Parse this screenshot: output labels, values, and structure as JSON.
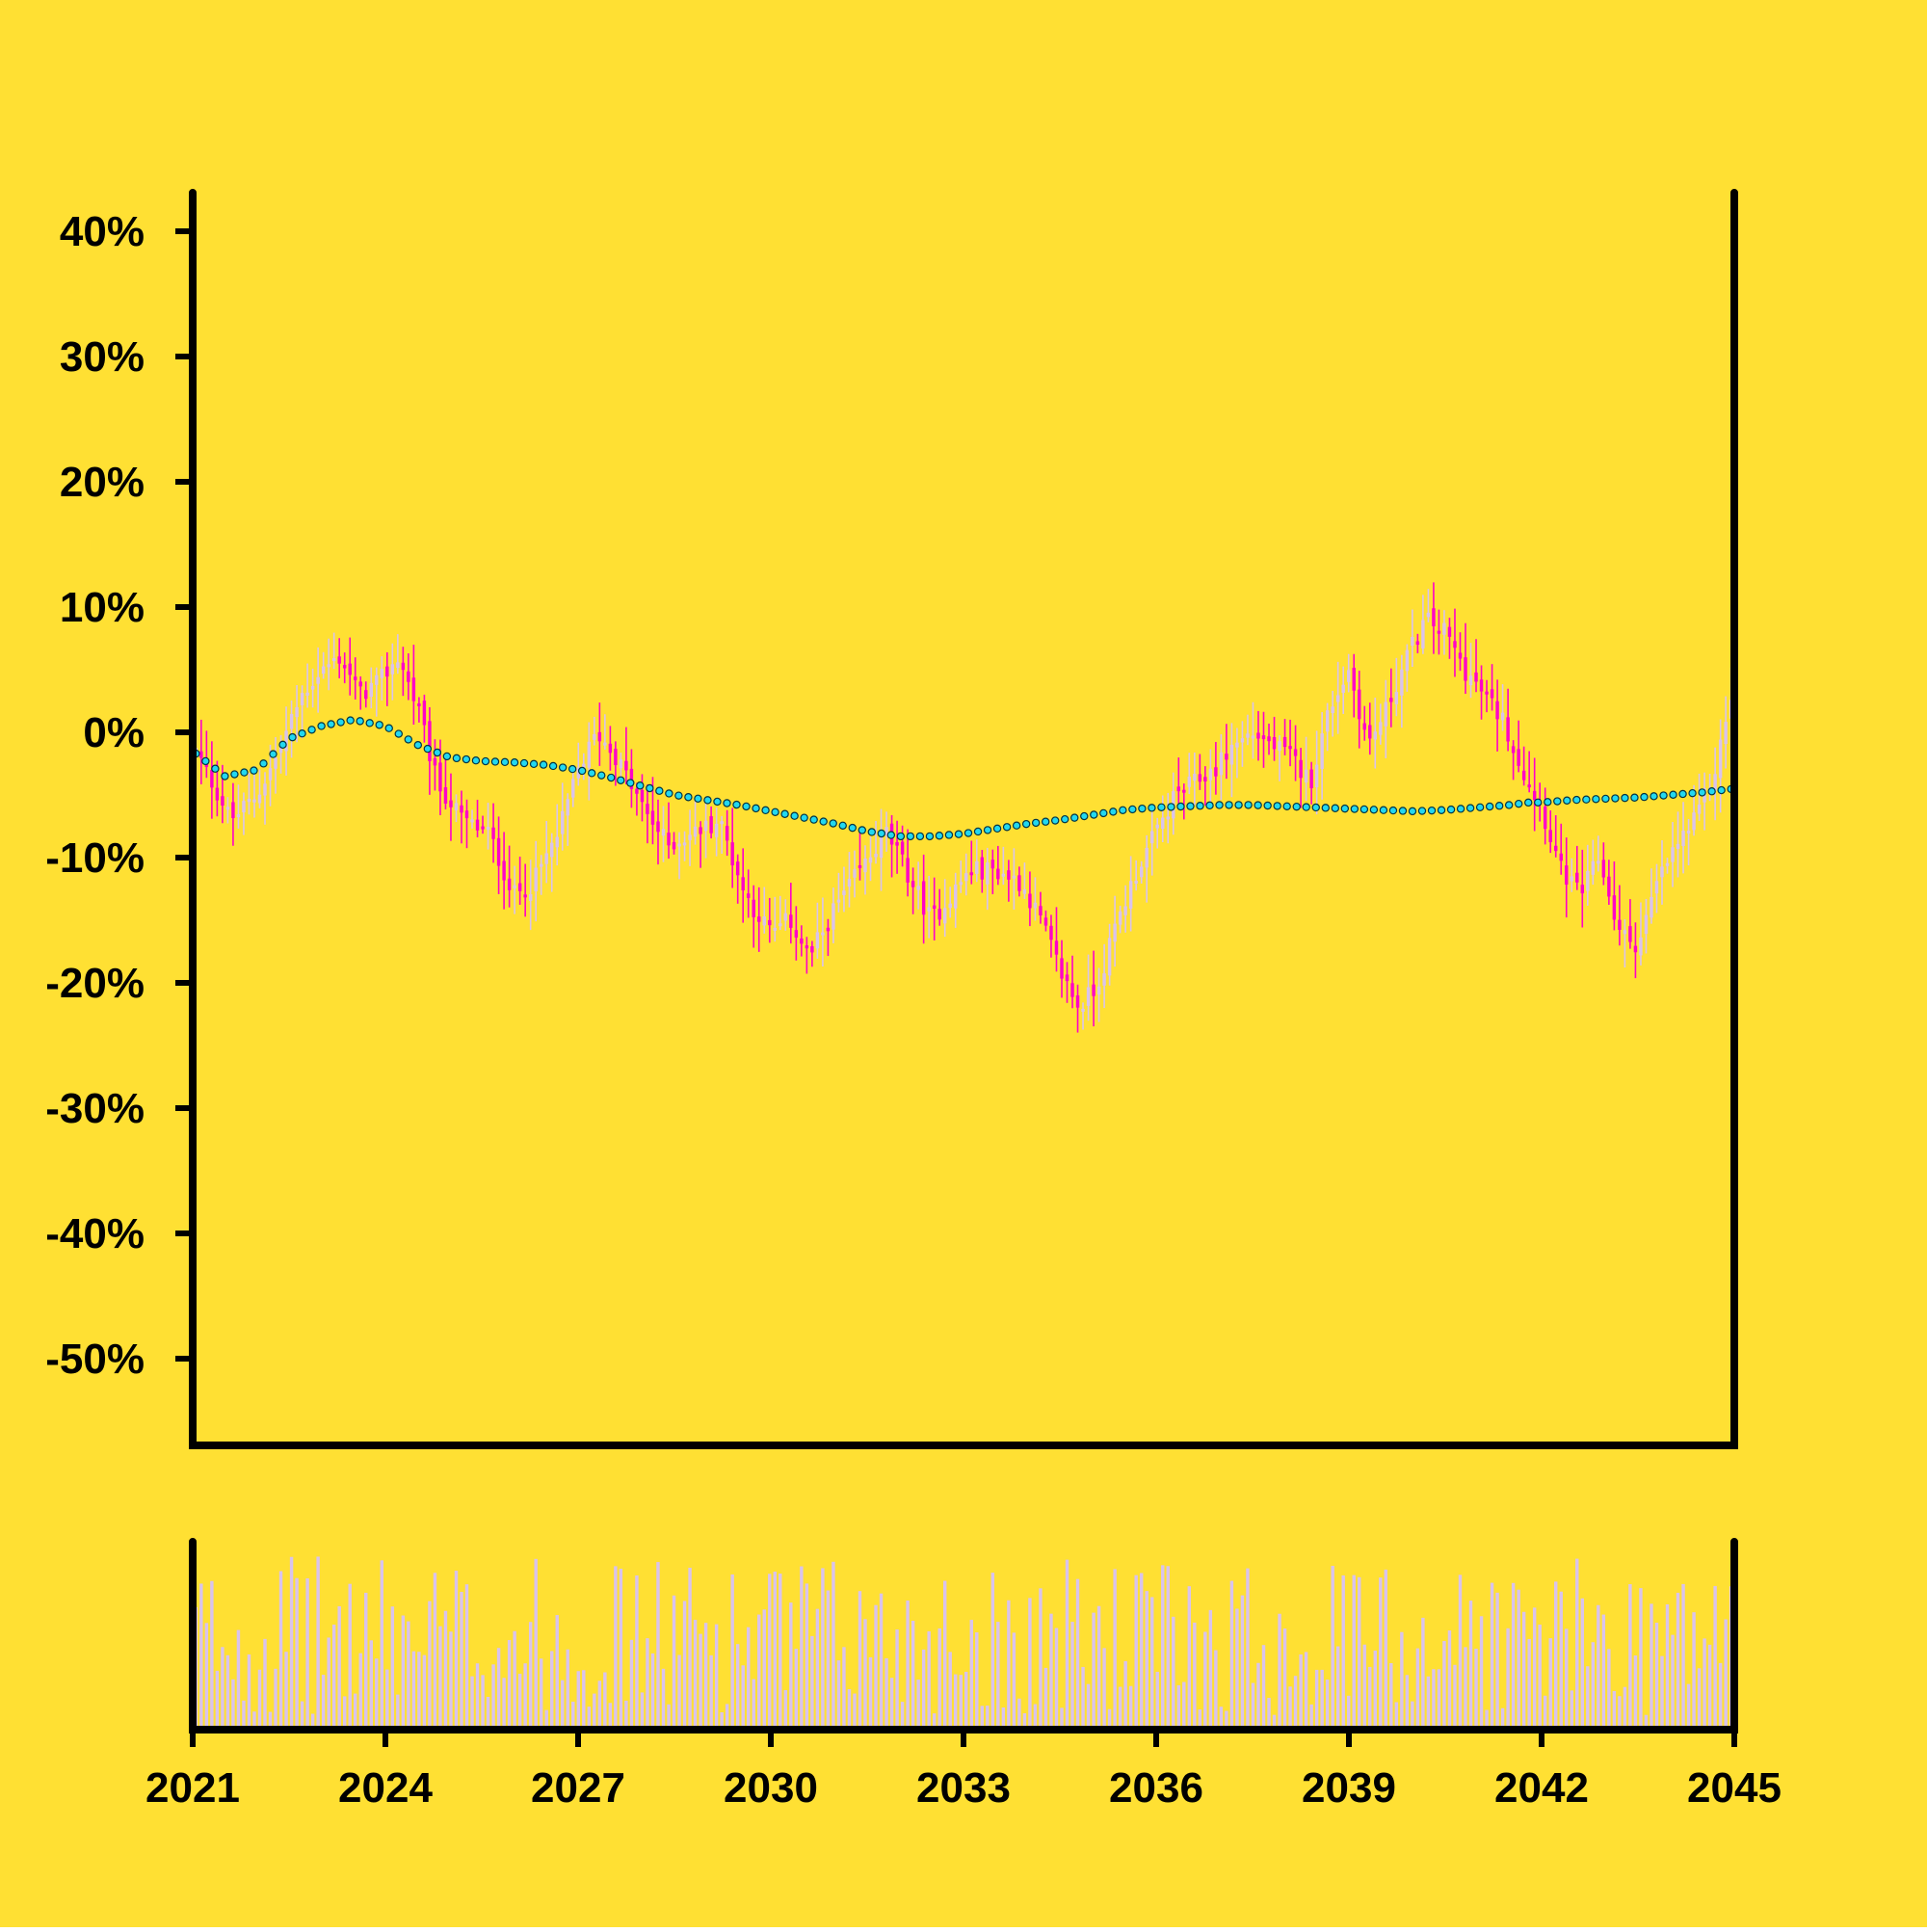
{
  "chart_data": {
    "type": "candlestick",
    "title": "",
    "xlabel": "",
    "ylabel": "",
    "x_ticks": [
      "2021",
      "2024",
      "2027",
      "2030",
      "2033",
      "2036",
      "2039",
      "2042",
      "2045"
    ],
    "y_ticks": [
      "40%",
      "30%",
      "20%",
      "10%",
      "0%",
      "-10%",
      "-20%",
      "-30%",
      "-40%",
      "-50%"
    ],
    "xlim": [
      2021,
      2045
    ],
    "ylim": [
      -57,
      43
    ],
    "grid": false,
    "legend": "none",
    "colors": {
      "background": "#FFE033",
      "axis": "#000000",
      "candle_up": "#D9C3EC",
      "candle_down": "#FF00C8",
      "moving_average_fill": "#22D8F0",
      "moving_average_stroke": "#003344",
      "volume": "#D9C3EC"
    },
    "close_path": [
      [
        2021.0,
        -1
      ],
      [
        2021.3,
        -4
      ],
      [
        2021.6,
        -7
      ],
      [
        2022.0,
        -5
      ],
      [
        2022.3,
        -2
      ],
      [
        2022.7,
        3
      ],
      [
        2023.0,
        5
      ],
      [
        2023.3,
        6
      ],
      [
        2023.6,
        3
      ],
      [
        2023.9,
        4
      ],
      [
        2024.2,
        6
      ],
      [
        2024.5,
        2
      ],
      [
        2024.8,
        -4
      ],
      [
        2025.2,
        -7
      ],
      [
        2025.6,
        -8
      ],
      [
        2026.0,
        -13
      ],
      [
        2026.3,
        -12
      ],
      [
        2026.7,
        -8
      ],
      [
        2027.0,
        -3
      ],
      [
        2027.3,
        0
      ],
      [
        2027.6,
        -2
      ],
      [
        2028.0,
        -6
      ],
      [
        2028.4,
        -9
      ],
      [
        2028.8,
        -8
      ],
      [
        2029.2,
        -7
      ],
      [
        2029.6,
        -13
      ],
      [
        2030.0,
        -16
      ],
      [
        2030.3,
        -15
      ],
      [
        2030.6,
        -18
      ],
      [
        2031.0,
        -14
      ],
      [
        2031.4,
        -11
      ],
      [
        2031.8,
        -8
      ],
      [
        2032.1,
        -11
      ],
      [
        2032.5,
        -15
      ],
      [
        2032.8,
        -13
      ],
      [
        2033.1,
        -11
      ],
      [
        2033.5,
        -11
      ],
      [
        2033.9,
        -12
      ],
      [
        2034.2,
        -15
      ],
      [
        2034.5,
        -19
      ],
      [
        2034.8,
        -22
      ],
      [
        2035.1,
        -20
      ],
      [
        2035.4,
        -15
      ],
      [
        2035.7,
        -11
      ],
      [
        2036.0,
        -8
      ],
      [
        2036.3,
        -5
      ],
      [
        2036.6,
        -4
      ],
      [
        2036.9,
        -3
      ],
      [
        2037.2,
        -1
      ],
      [
        2037.5,
        0
      ],
      [
        2037.8,
        -1
      ],
      [
        2038.1,
        -2
      ],
      [
        2038.4,
        -4
      ],
      [
        2038.7,
        2
      ],
      [
        2039.0,
        5
      ],
      [
        2039.3,
        -1
      ],
      [
        2039.6,
        2
      ],
      [
        2039.9,
        6
      ],
      [
        2040.2,
        9
      ],
      [
        2040.5,
        8
      ],
      [
        2040.8,
        5
      ],
      [
        2041.1,
        3
      ],
      [
        2041.4,
        1
      ],
      [
        2041.7,
        -3
      ],
      [
        2042.0,
        -6
      ],
      [
        2042.3,
        -11
      ],
      [
        2042.6,
        -13
      ],
      [
        2042.9,
        -10
      ],
      [
        2043.2,
        -16
      ],
      [
        2043.5,
        -17
      ],
      [
        2043.8,
        -12
      ],
      [
        2044.1,
        -9
      ],
      [
        2044.4,
        -7
      ],
      [
        2044.7,
        -3
      ],
      [
        2045.0,
        4
      ]
    ],
    "close_path_notes": "",
    "moving_average": [
      [
        2021.0,
        -1.5
      ],
      [
        2021.5,
        -3.5
      ],
      [
        2022.0,
        -3.0
      ],
      [
        2022.5,
        -0.5
      ],
      [
        2023.0,
        0.5
      ],
      [
        2023.5,
        1.0
      ],
      [
        2024.0,
        0.5
      ],
      [
        2024.5,
        -1.0
      ],
      [
        2025.0,
        -2.0
      ],
      [
        2025.5,
        -2.3
      ],
      [
        2026.0,
        -2.4
      ],
      [
        2026.5,
        -2.6
      ],
      [
        2027.0,
        -3.0
      ],
      [
        2027.5,
        -3.6
      ],
      [
        2028.0,
        -4.3
      ],
      [
        2028.5,
        -5.0
      ],
      [
        2029.0,
        -5.4
      ],
      [
        2029.5,
        -5.8
      ],
      [
        2030.0,
        -6.3
      ],
      [
        2030.5,
        -6.8
      ],
      [
        2031.0,
        -7.3
      ],
      [
        2031.5,
        -7.9
      ],
      [
        2032.0,
        -8.3
      ],
      [
        2032.5,
        -8.3
      ],
      [
        2033.0,
        -8.1
      ],
      [
        2033.5,
        -7.7
      ],
      [
        2034.0,
        -7.3
      ],
      [
        2034.5,
        -7.0
      ],
      [
        2035.0,
        -6.6
      ],
      [
        2035.5,
        -6.2
      ],
      [
        2036.0,
        -6.0
      ],
      [
        2036.5,
        -5.9
      ],
      [
        2037.0,
        -5.8
      ],
      [
        2037.5,
        -5.8
      ],
      [
        2038.0,
        -5.9
      ],
      [
        2038.5,
        -6.0
      ],
      [
        2039.0,
        -6.1
      ],
      [
        2039.5,
        -6.2
      ],
      [
        2040.0,
        -6.3
      ],
      [
        2040.5,
        -6.2
      ],
      [
        2041.0,
        -6.0
      ],
      [
        2041.5,
        -5.8
      ],
      [
        2041.8,
        -5.6
      ],
      [
        2042.0,
        -5.6
      ],
      [
        2042.5,
        -5.4
      ],
      [
        2043.0,
        -5.3
      ],
      [
        2043.5,
        -5.2
      ],
      [
        2044.0,
        -5.0
      ],
      [
        2044.5,
        -4.8
      ],
      [
        2045.0,
        -4.5
      ]
    ]
  }
}
